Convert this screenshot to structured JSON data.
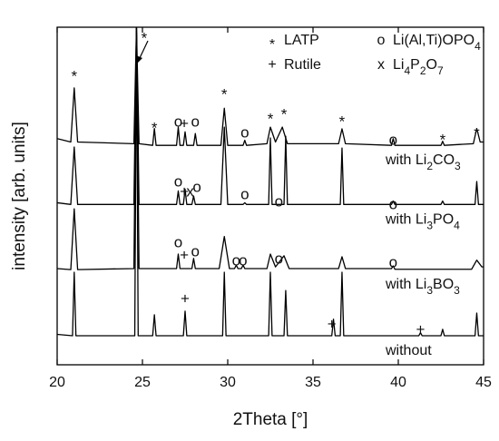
{
  "chart_data": {
    "type": "line",
    "xlabel": "2Theta [°]",
    "ylabel": "intensity [arb. units]",
    "xlim": [
      20,
      45
    ],
    "xticks": [
      20,
      25,
      30,
      35,
      40,
      45
    ],
    "ylim": [
      0,
      100
    ],
    "color": "#000000",
    "series": [
      {
        "name": "with Li2CO3",
        "x": [
          20,
          20.8,
          21.0,
          21.2,
          24.5,
          24.65,
          24.8,
          25.6,
          25.7,
          25.8,
          27.0,
          27.1,
          27.2,
          27.4,
          27.5,
          27.6,
          28.0,
          28.1,
          28.2,
          29.6,
          29.8,
          30.0,
          30.9,
          31.0,
          31.1,
          32.3,
          32.5,
          32.8,
          33.2,
          33.5,
          36.5,
          36.7,
          36.9,
          39.6,
          39.7,
          39.8,
          42.5,
          42.6,
          42.7,
          44.4,
          44.6,
          44.8,
          45
        ],
        "values": [
          67,
          66,
          82,
          66,
          65.5,
          100,
          65.5,
          65,
          70,
          65,
          65,
          70.4,
          65,
          65,
          69,
          65,
          65,
          68.5,
          65,
          65,
          76,
          65,
          65,
          66.5,
          65,
          65.5,
          70.4,
          66,
          70.4,
          65.5,
          65.5,
          69.9,
          65.5,
          65,
          67,
          65,
          65,
          66.2,
          65,
          65.5,
          70,
          66,
          66
        ]
      },
      {
        "name": "with Li3PO4",
        "x": [
          20,
          20.8,
          21.0,
          21.2,
          24.5,
          24.65,
          24.8,
          27.0,
          27.1,
          27.2,
          27.4,
          27.5,
          27.6,
          27.9,
          28.0,
          28.1,
          29.6,
          29.8,
          30.0,
          30.9,
          31.0,
          31.1,
          32.4,
          32.5,
          32.6,
          33.3,
          33.4,
          33.5,
          36.6,
          36.7,
          36.8,
          39.6,
          39.7,
          39.8,
          42.5,
          42.6,
          42.7,
          44.5,
          44.6,
          44.7,
          45
        ],
        "values": [
          48,
          47.5,
          64.5,
          47.5,
          47.5,
          100,
          47.5,
          47.5,
          51.5,
          47.5,
          47.5,
          52,
          47.5,
          47.5,
          50,
          47.5,
          47.5,
          70.4,
          47.5,
          47.5,
          48,
          47.5,
          47.5,
          67.2,
          47.5,
          47.5,
          67.7,
          47.5,
          47.5,
          64.2,
          47.5,
          47.5,
          48.5,
          47.5,
          47.5,
          48.5,
          47.5,
          47.5,
          54.3,
          47.5,
          47.5
        ]
      },
      {
        "name": "with Li3BO3",
        "x": [
          20,
          20.8,
          21.0,
          21.2,
          24.5,
          24.65,
          24.8,
          27.0,
          27.1,
          27.2,
          27.9,
          28.0,
          28.1,
          29.5,
          29.8,
          30.1,
          30.4,
          30.5,
          30.6,
          30.8,
          30.9,
          31.0,
          32.3,
          32.5,
          32.8,
          33.3,
          33.6,
          36.5,
          36.7,
          36.9,
          39.6,
          39.7,
          39.8,
          44.3,
          44.6,
          44.9,
          45
        ],
        "values": [
          28.5,
          28.2,
          46.2,
          28.2,
          28.5,
          100,
          28.5,
          28.5,
          32.8,
          28.5,
          28.5,
          31.5,
          28.5,
          28.5,
          38,
          28.5,
          28.5,
          29.5,
          28.5,
          28.5,
          29.5,
          28.5,
          28.5,
          32.8,
          29,
          32.3,
          28.5,
          28.5,
          32,
          28.5,
          28.5,
          29.3,
          28.3,
          28.3,
          31,
          29,
          29
        ]
      },
      {
        "name": "without",
        "x": [
          20,
          20.9,
          21.0,
          21.1,
          24.55,
          24.65,
          24.75,
          25.6,
          25.7,
          25.8,
          27.4,
          27.5,
          27.6,
          29.7,
          29.8,
          29.9,
          32.4,
          32.5,
          32.6,
          33.3,
          33.4,
          33.5,
          36.1,
          36.2,
          36.3,
          36.6,
          36.7,
          36.8,
          41.2,
          41.3,
          41.4,
          42.5,
          42.6,
          42.7,
          44.5,
          44.6,
          44.7,
          45
        ],
        "values": [
          9,
          8.6,
          27.4,
          8.6,
          8.6,
          100,
          8.6,
          8.6,
          14.8,
          8.6,
          8.6,
          15.9,
          8.6,
          8.6,
          27.4,
          8.6,
          8.6,
          27.4,
          8.6,
          8.6,
          22,
          8.6,
          8.6,
          13.5,
          8.6,
          8.6,
          27.4,
          8.6,
          8.6,
          9.5,
          8.6,
          8.6,
          10.5,
          8.6,
          8.6,
          15.3,
          8.6,
          8.6
        ]
      }
    ],
    "legend": [
      {
        "symbol": "*",
        "label": "LATP"
      },
      {
        "symbol": "+",
        "label": "Rutile"
      },
      {
        "symbol": "o",
        "label": "Li(Al,Ti)OPO4"
      },
      {
        "symbol": "x",
        "label": "Li4P2O7"
      }
    ],
    "annotations": [
      {
        "text": "*",
        "x": 21.0,
        "y": 86.6
      },
      {
        "text": "*",
        "x": 25.1,
        "y": 97.8
      },
      {
        "text": "*",
        "x": 25.7,
        "y": 71.2
      },
      {
        "text": "o",
        "x": 27.1,
        "y": 71.8
      },
      {
        "text": "+",
        "x": 27.45,
        "y": 71.2
      },
      {
        "text": "o",
        "x": 28.1,
        "y": 71.8
      },
      {
        "text": "*",
        "x": 29.8,
        "y": 81.2
      },
      {
        "text": "o",
        "x": 31.0,
        "y": 68.5
      },
      {
        "text": "*",
        "x": 32.5,
        "y": 73.9
      },
      {
        "text": "*",
        "x": 33.3,
        "y": 75.3
      },
      {
        "text": "*",
        "x": 36.7,
        "y": 73.1
      },
      {
        "text": "o",
        "x": 39.7,
        "y": 66.4
      },
      {
        "text": "*",
        "x": 42.6,
        "y": 67.7
      },
      {
        "text": "*",
        "x": 44.6,
        "y": 69.6
      },
      {
        "text": "o",
        "x": 27.1,
        "y": 54.0
      },
      {
        "text": "+",
        "x": 27.45,
        "y": 51.1
      },
      {
        "text": "x",
        "x": 27.8,
        "y": 51.1
      },
      {
        "text": "o",
        "x": 28.2,
        "y": 52.4
      },
      {
        "text": "o",
        "x": 31.0,
        "y": 50.3
      },
      {
        "text": "o",
        "x": 33.0,
        "y": 48.1
      },
      {
        "text": "o",
        "x": 39.7,
        "y": 47.3
      },
      {
        "text": "o",
        "x": 27.1,
        "y": 36.0
      },
      {
        "text": "+",
        "x": 27.45,
        "y": 32.3
      },
      {
        "text": "o",
        "x": 28.1,
        "y": 33.3
      },
      {
        "text": "o",
        "x": 30.5,
        "y": 30.6
      },
      {
        "text": "o",
        "x": 30.9,
        "y": 30.6
      },
      {
        "text": "o",
        "x": 33.0,
        "y": 31.2
      },
      {
        "text": "o",
        "x": 39.7,
        "y": 30.1
      },
      {
        "text": "+",
        "x": 27.5,
        "y": 19.4
      },
      {
        "text": "+",
        "x": 36.1,
        "y": 11.8
      },
      {
        "text": "+",
        "x": 41.3,
        "y": 10.2
      }
    ]
  }
}
